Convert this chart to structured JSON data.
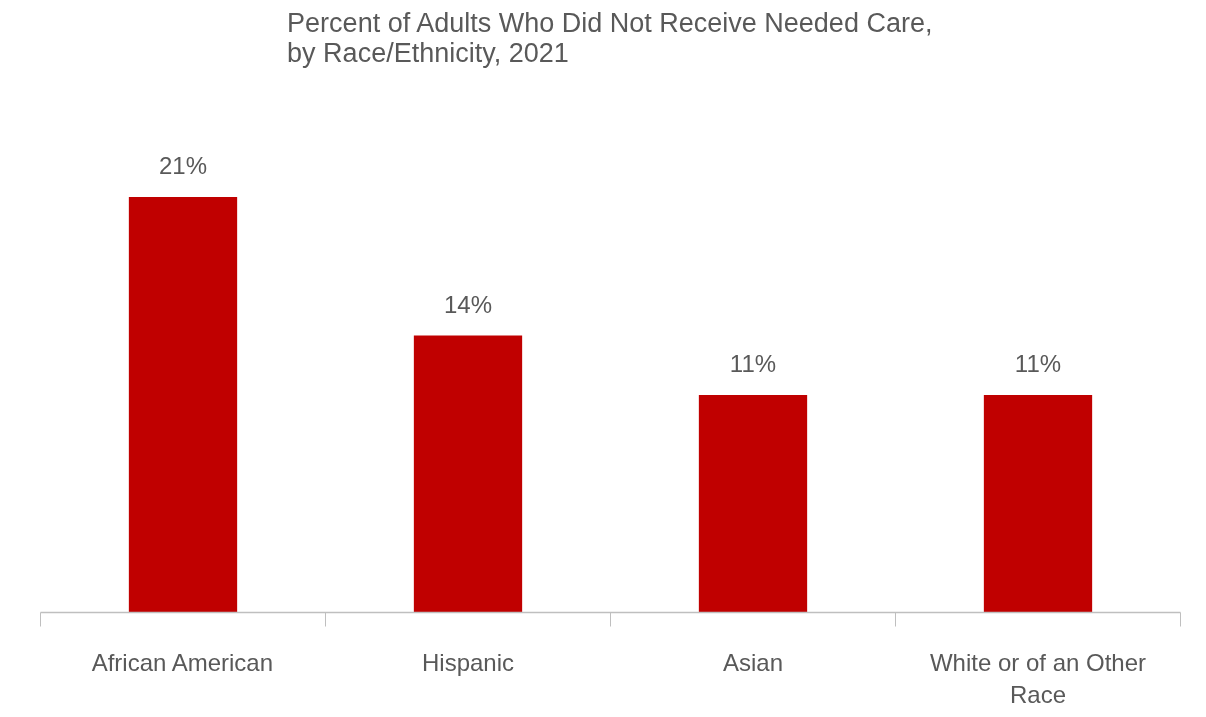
{
  "chart_data": {
    "type": "bar",
    "title": "Percent of Adults Who Did Not Receive Needed Care, by Race/Ethnicity, 2021",
    "categories": [
      "African American",
      "Hispanic",
      "Asian",
      "White or of an Other Race"
    ],
    "values": [
      21,
      14,
      11,
      11
    ],
    "value_labels": [
      "21%",
      "14%",
      "11%",
      "11%"
    ],
    "color": "#c00000",
    "grid": false
  }
}
